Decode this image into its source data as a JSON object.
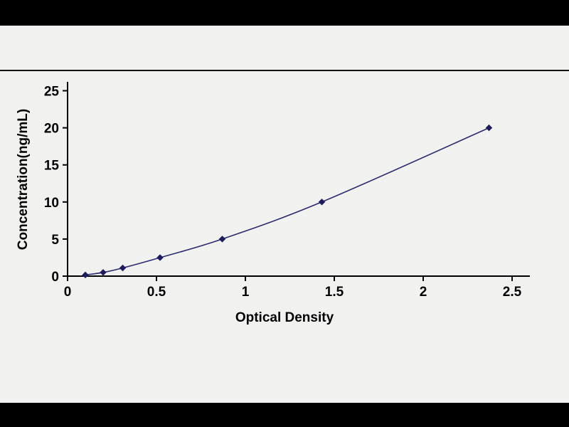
{
  "colors": {
    "border_bar": "#000000",
    "background": "#f1f1ef",
    "rule_line": "#111111",
    "axis": "#000000",
    "curve_line": "#2b2b6e",
    "marker": "#1c1c5e",
    "tick_text": "#000000"
  },
  "chart_data": {
    "type": "scatter",
    "title": "",
    "xlabel": "Optical Density",
    "ylabel": "Concentration(ng/mL)",
    "x": [
      0.1,
      0.2,
      0.31,
      0.52,
      0.87,
      1.43,
      2.37
    ],
    "y": [
      0.16,
      0.5,
      1.1,
      2.5,
      5,
      10,
      20
    ],
    "xlim": [
      0,
      2.6
    ],
    "ylim": [
      0,
      26.2
    ],
    "xticks": [
      0,
      0.5,
      1,
      1.5,
      2,
      2.5
    ],
    "xtick_labels": [
      "0",
      "0.5",
      "1",
      "1.5",
      "2",
      "2.5"
    ],
    "yticks": [
      0,
      5,
      10,
      15,
      20,
      25
    ],
    "ytick_labels": [
      "0",
      "5",
      "10",
      "15",
      "20",
      "25"
    ],
    "grid": false,
    "legend": "none",
    "marker": "diamond",
    "line_smooth": true
  }
}
